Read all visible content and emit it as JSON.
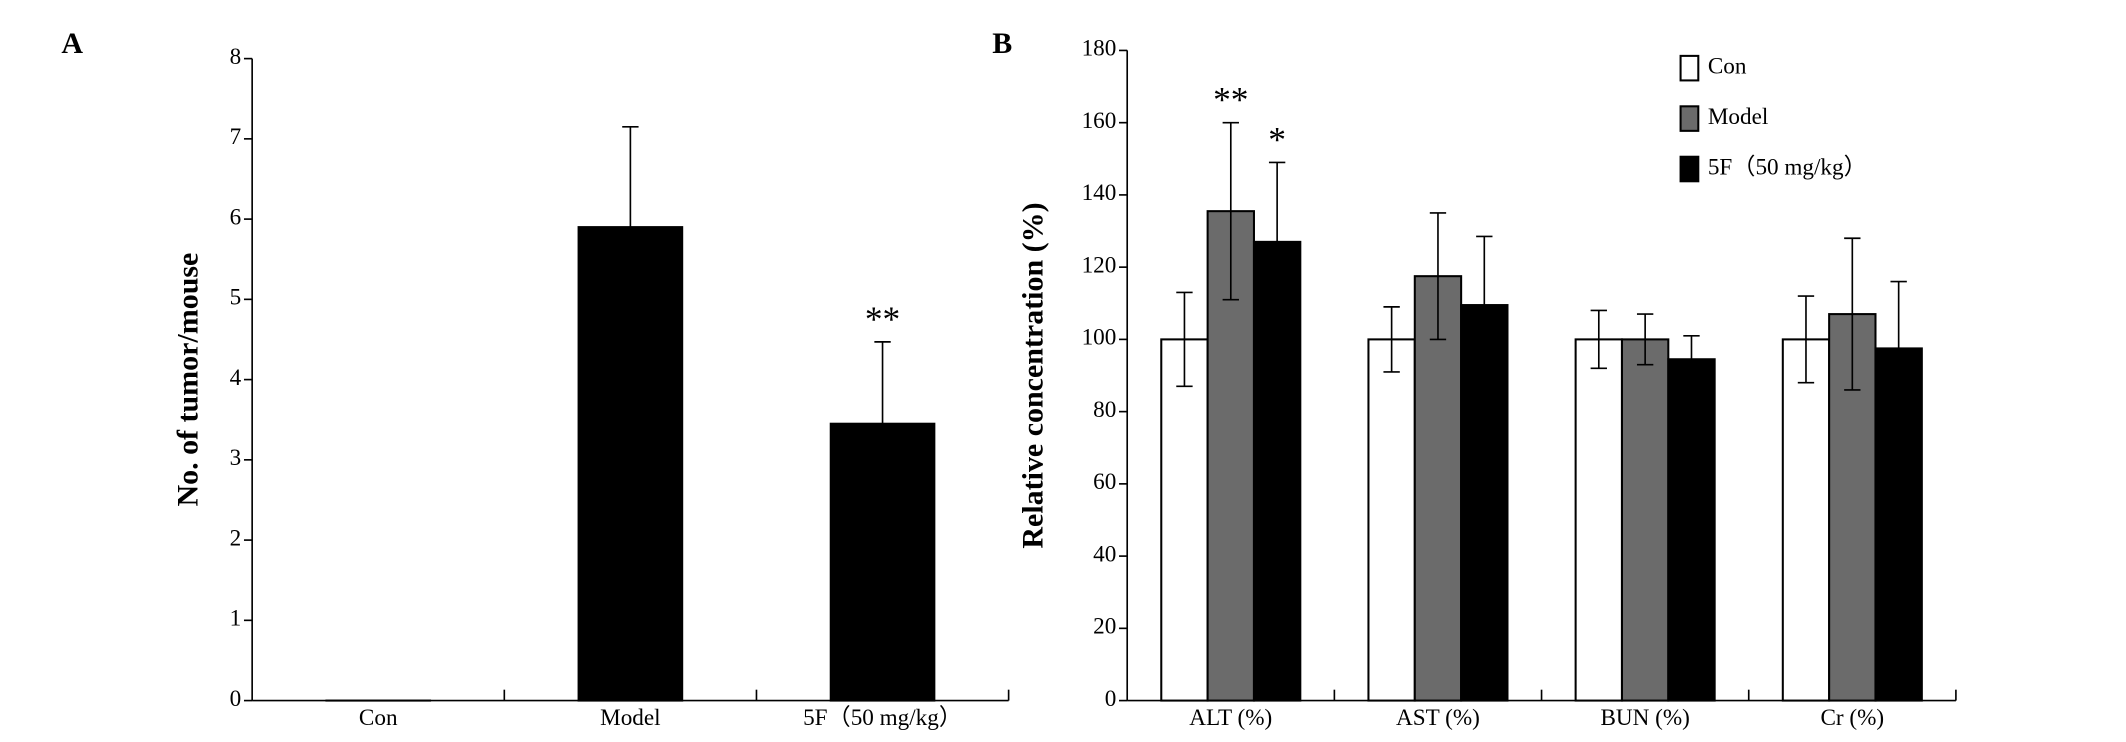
{
  "chart_data": [
    {
      "type": "bar",
      "panel": "A",
      "y_label": "No. of tumor/mouse",
      "categories": [
        "Con",
        "Model",
        "5F（50 mg/kg）"
      ],
      "series": [
        {
          "color": "#000000",
          "values": [
            0,
            5.9,
            3.45
          ],
          "errors": [
            0,
            1.25,
            1.02
          ],
          "annotations": [
            null,
            null,
            "**"
          ]
        }
      ],
      "error_bars": "upper",
      "ylim": [
        0,
        8
      ],
      "yticks": [
        0,
        1,
        2,
        3,
        4,
        5,
        6,
        7,
        8
      ]
    },
    {
      "type": "bar",
      "panel": "B",
      "y_label": "Relative concentration (%)",
      "categories": [
        "ALT (%)",
        "AST (%)",
        "BUN (%)",
        "Cr (%)"
      ],
      "series": [
        {
          "name": "Con",
          "color": "#ffffff",
          "values": [
            100,
            100,
            100,
            100
          ],
          "errors": [
            13,
            9,
            8,
            12
          ],
          "annotations": [
            null,
            null,
            null,
            null
          ]
        },
        {
          "name": "Model",
          "color": "#6b6b6b",
          "values": [
            135.5,
            117.5,
            100,
            107
          ],
          "errors": [
            24.5,
            17.5,
            7,
            21
          ],
          "annotations": [
            "**",
            null,
            null,
            null
          ]
        },
        {
          "name": "5F（50 mg/kg）",
          "color": "#000000",
          "values": [
            127,
            109.5,
            94.5,
            97.5
          ],
          "errors": [
            22,
            19,
            6.5,
            18.5
          ],
          "annotations": [
            "*",
            null,
            null,
            null
          ]
        }
      ],
      "error_bars": "both",
      "legend": "upper right",
      "ylim": [
        0,
        180
      ],
      "yticks": [
        0,
        20,
        40,
        60,
        80,
        100,
        120,
        140,
        160,
        180
      ]
    }
  ]
}
